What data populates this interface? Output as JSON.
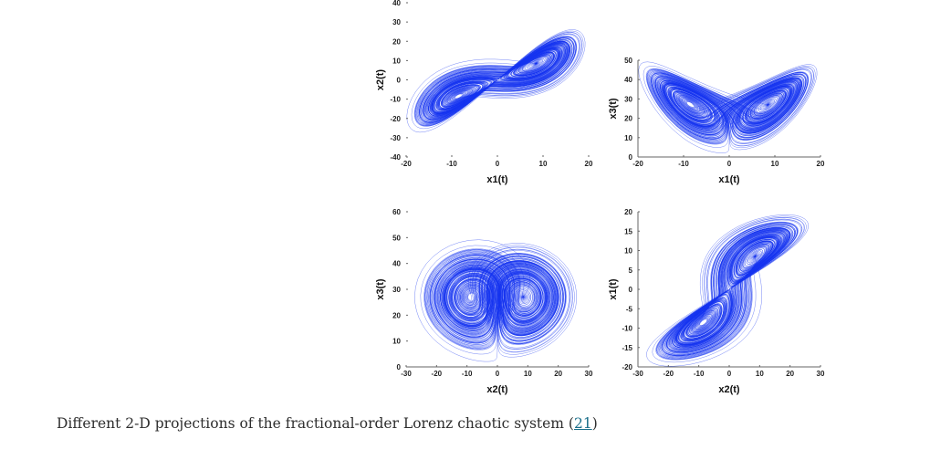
{
  "figure": {
    "caption": "Different 2-D projections of the fractional-order Lorenz chaotic system (",
    "caption_ref": "21",
    "caption_end": ")",
    "line_color": "#1432f0"
  },
  "chart_data": [
    {
      "type": "line",
      "xlabel": "x1(t)",
      "ylabel": "x2(t)",
      "xvar": "x1",
      "yvar": "x2",
      "xlim": [
        -20,
        20
      ],
      "ylim": [
        -40,
        40
      ],
      "xticks": [
        -20,
        -10,
        0,
        10,
        20
      ],
      "yticks": [
        -40,
        -30,
        -20,
        -10,
        0,
        10,
        20,
        30,
        40
      ],
      "axis_lines": false
    },
    {
      "type": "line",
      "xlabel": "x1(t)",
      "ylabel": "x3(t)",
      "xvar": "x1",
      "yvar": "x3",
      "xlim": [
        -20,
        20
      ],
      "ylim": [
        0,
        50
      ],
      "xticks": [
        -20,
        -10,
        0,
        10,
        20
      ],
      "yticks": [
        0,
        10,
        20,
        30,
        40,
        50
      ],
      "axis_lines": true
    },
    {
      "type": "line",
      "xlabel": "x2(t)",
      "ylabel": "x3(t)",
      "xvar": "x2",
      "yvar": "x3",
      "xlim": [
        -30,
        30
      ],
      "ylim": [
        0,
        60
      ],
      "xticks": [
        -30,
        -20,
        -10,
        0,
        10,
        20,
        30
      ],
      "yticks": [
        0,
        10,
        20,
        30,
        40,
        50,
        60
      ],
      "axis_lines": "x"
    },
    {
      "type": "line",
      "xlabel": "x2(t)",
      "ylabel": "x1(t)",
      "xvar": "x2",
      "yvar": "x1",
      "xlim": [
        -30,
        30
      ],
      "ylim": [
        -20,
        20
      ],
      "xticks": [
        -30,
        -20,
        -10,
        0,
        10,
        20,
        30
      ],
      "yticks": [
        -20,
        -15,
        -10,
        -5,
        0,
        5,
        10,
        15,
        20
      ],
      "axis_lines": true
    }
  ]
}
